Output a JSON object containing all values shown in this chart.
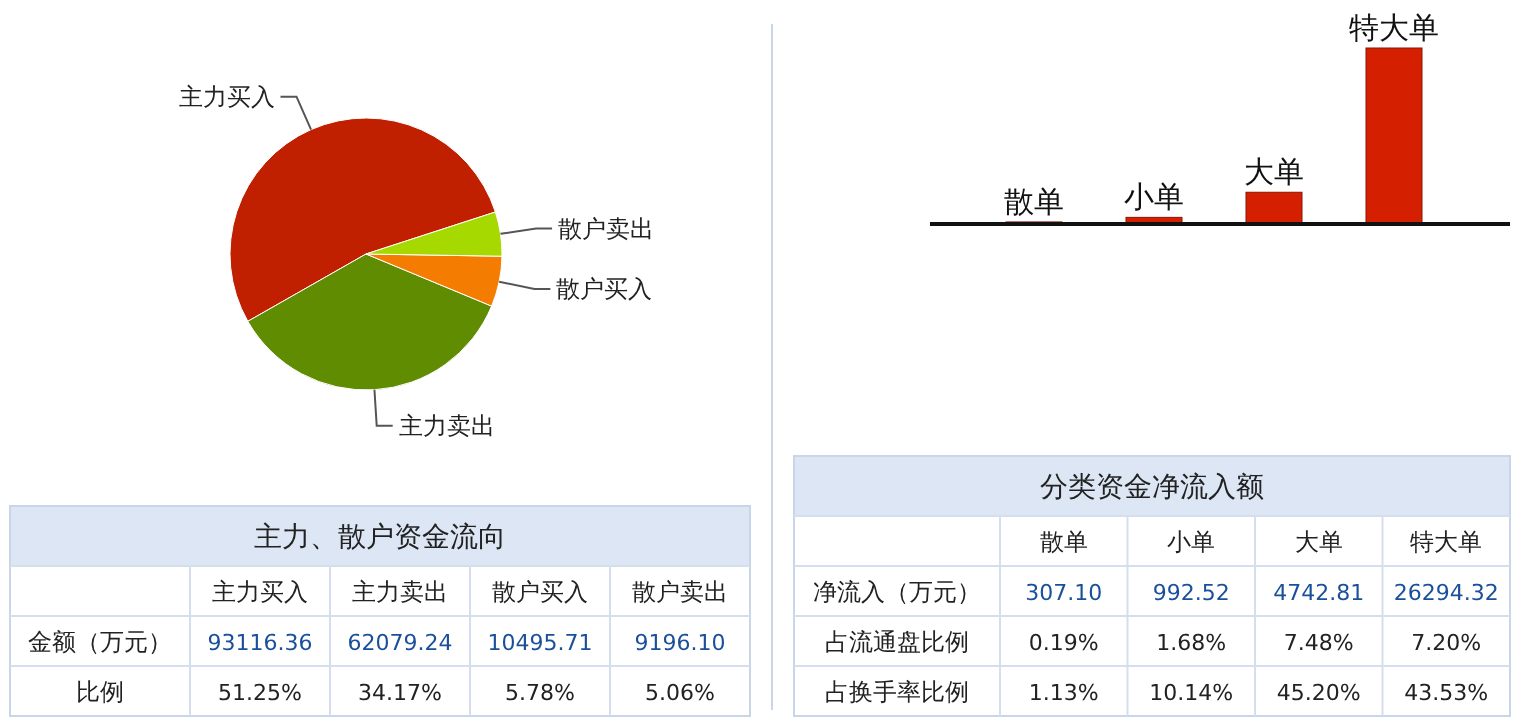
{
  "chart_data": [
    {
      "type": "pie",
      "title": "主力、散户资金流向",
      "categories": [
        "主力买入",
        "主力卖出",
        "散户买入",
        "散户卖出"
      ],
      "values": [
        53.24,
        35.5,
        6.0,
        5.26
      ],
      "colors": [
        "#c01f00",
        "#5f8c00",
        "#f47c00",
        "#a6d900"
      ],
      "annotations": [
        "金额（万元）",
        "93116.36",
        "62079.24",
        "10495.71",
        "9196.10",
        "比例",
        "51.25%",
        "34.17%",
        "5.78%",
        "5.06%"
      ]
    },
    {
      "type": "bar",
      "title": "分类资金净流入额",
      "categories": [
        "散单",
        "小单",
        "大单",
        "特大单"
      ],
      "values": [
        307.1,
        992.52,
        4742.81,
        26294.32
      ],
      "color": "#d42000",
      "value_labels": [
        "307.10",
        "992.52",
        "4742.81",
        "26294.32"
      ],
      "annotations": [
        "净流入（万元）",
        "占流通盘比例",
        "0.19%",
        "1.68%",
        "7.48%",
        "7.20%",
        "占换手率比例",
        "1.13%",
        "10.14%",
        "45.20%",
        "43.53%"
      ]
    }
  ]
}
